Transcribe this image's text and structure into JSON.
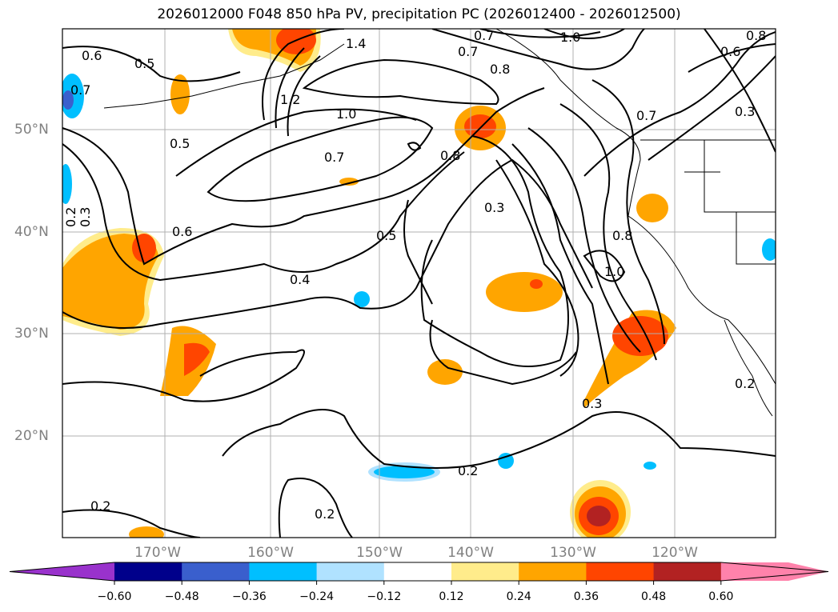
{
  "title": "2026012000 F048 850 hPa PV, precipitation PC (2026012400 - 2026012500)",
  "lat_labels": [
    "50°N",
    "40°N",
    "30°N",
    "20°N"
  ],
  "lon_labels": [
    "170°W",
    "160°W",
    "150°W",
    "140°W",
    "130°W",
    "120°W"
  ],
  "colorbar": {
    "ticks": [
      "−0.60",
      "−0.48",
      "−0.36",
      "−0.24",
      "−0.12",
      "0.12",
      "0.24",
      "0.36",
      "0.48",
      "0.60"
    ],
    "colors": [
      "#9932cc",
      "#00008b",
      "#3a5fcd",
      "#00bfff",
      "#b0e2ff",
      "#ffffff",
      "#ffec8b",
      "#ffa500",
      "#ff4500",
      "#b22222",
      "#ff82ab"
    ]
  },
  "contour_labels": [
    "0.6",
    "0.5",
    "0.7",
    "1.4",
    "1.2",
    "1.0",
    "0.7",
    "0.6",
    "0.7",
    "0.8",
    "1.0",
    "0.7",
    "0.8",
    "0.3",
    "0.5",
    "0.7",
    "0.8",
    "0.3",
    "0.2",
    "0.3",
    "0.6",
    "0.5",
    "0.4",
    "0.8",
    "1.0",
    "0.3",
    "0.2",
    "0.2",
    "0.2",
    "0.2"
  ]
}
